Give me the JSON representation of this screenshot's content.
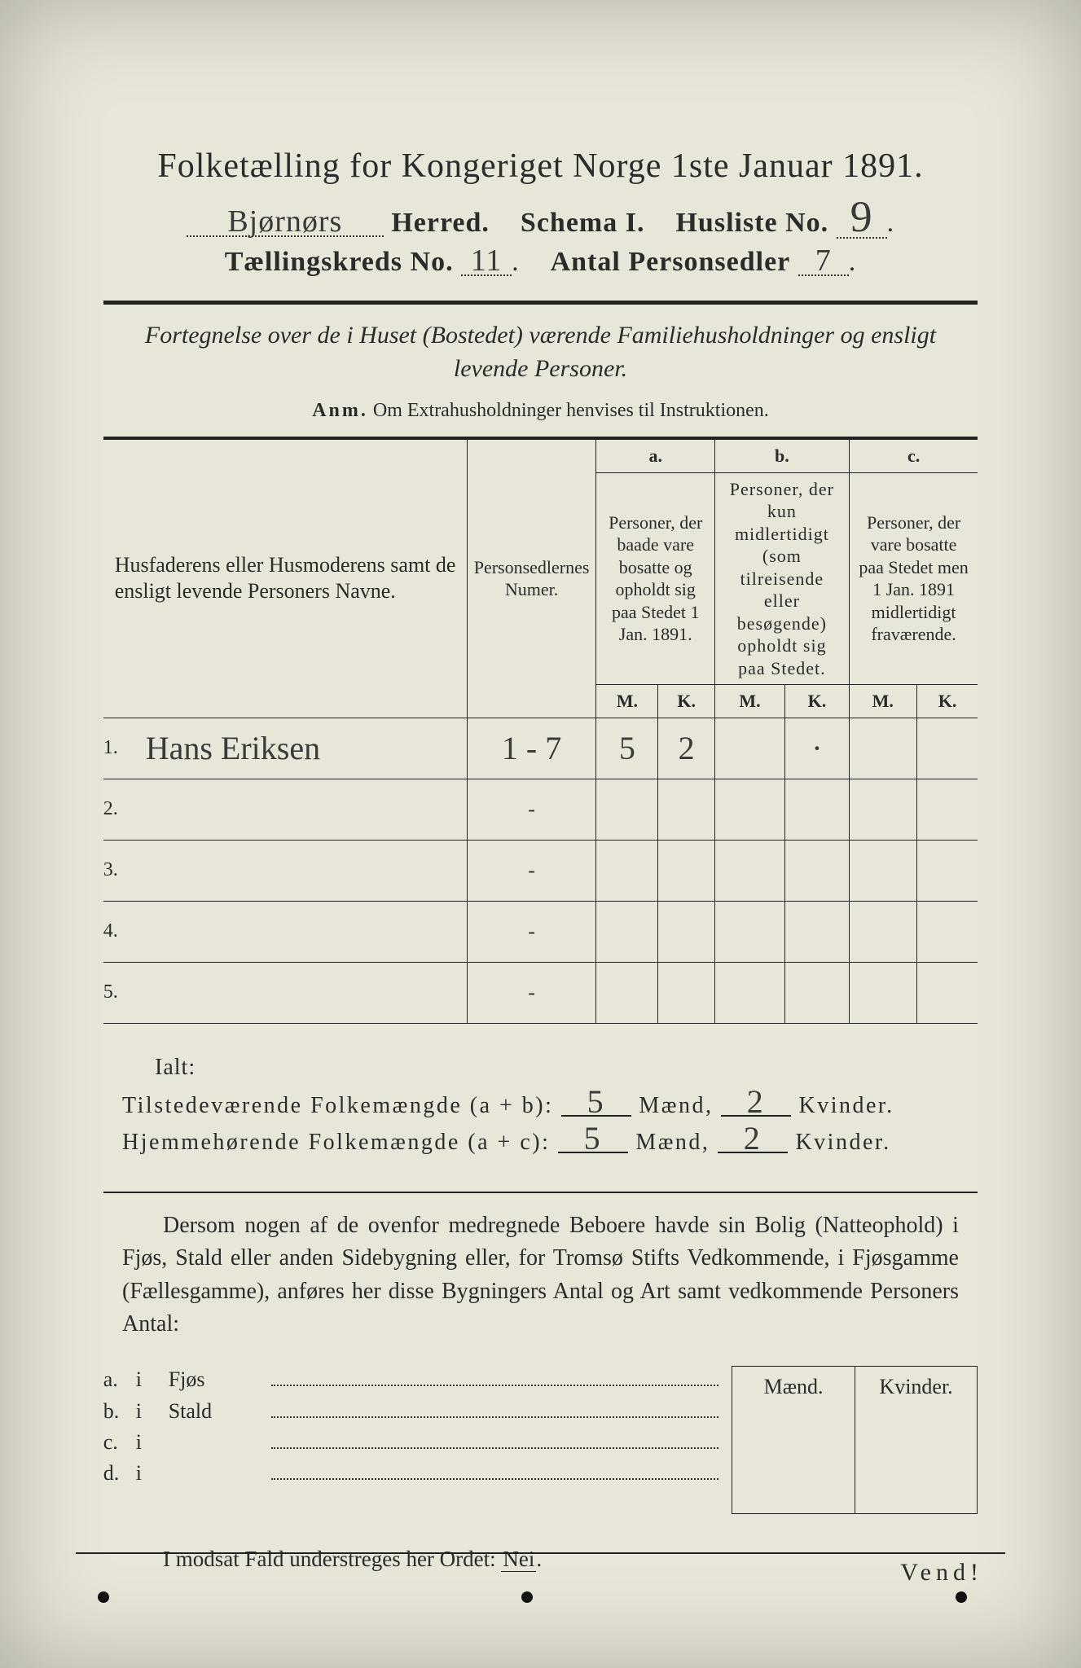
{
  "colors": {
    "paper_bg": "#e8e6d8",
    "ink": "#2b2b2b",
    "handwriting": "#3a3a3a",
    "rule": "#222222"
  },
  "typography": {
    "title_fontsize_pt": 32,
    "body_fontsize_pt": 21,
    "handwriting_font": "Brush Script MT"
  },
  "header": {
    "title": "Folketælling for Kongeriget Norge 1ste Januar 1891.",
    "herred_value": "Bjørnørs",
    "herred_label": "Herred.",
    "schema_label": "Schema I.",
    "husliste_label": "Husliste No.",
    "husliste_value": "9",
    "tkreds_label": "Tællingskreds No.",
    "tkreds_value": "11",
    "antal_label": "Antal Personsedler",
    "antal_value": "7"
  },
  "subtitle": {
    "italic": "Fortegnelse over de i Huset (Bostedet) værende Familiehusholdninger og ensligt levende Personer.",
    "anm_label": "Anm.",
    "anm_text": "Om Extrahusholdninger henvises til Instruktionen."
  },
  "table": {
    "col_name_head": "Husfaderens eller Husmoderens samt de ensligt levende Personers Navne.",
    "col_numer_head": "Personsedlernes Numer.",
    "col_a_label": "a.",
    "col_a_head": "Personer, der baade vare bosatte og opholdt sig paa Stedet 1 Jan. 1891.",
    "col_b_label": "b.",
    "col_b_head": "Personer, der kun midlertidigt (som tilreisende eller besøgende) opholdt sig paa Stedet.",
    "col_c_label": "c.",
    "col_c_head": "Personer, der vare bosatte paa Stedet men 1 Jan. 1891 midlertidigt fraværende.",
    "mk_m": "M.",
    "mk_k": "K.",
    "rows": [
      {
        "n": "1.",
        "name": "Hans Eriksen",
        "numer": "1 - 7",
        "a_m": "5",
        "a_k": "2",
        "b_m": "",
        "b_k": "·",
        "c_m": "",
        "c_k": ""
      },
      {
        "n": "2.",
        "name": "",
        "numer": "-",
        "a_m": "",
        "a_k": "",
        "b_m": "",
        "b_k": "",
        "c_m": "",
        "c_k": ""
      },
      {
        "n": "3.",
        "name": "",
        "numer": "-",
        "a_m": "",
        "a_k": "",
        "b_m": "",
        "b_k": "",
        "c_m": "",
        "c_k": ""
      },
      {
        "n": "4.",
        "name": "",
        "numer": "-",
        "a_m": "",
        "a_k": "",
        "b_m": "",
        "b_k": "",
        "c_m": "",
        "c_k": ""
      },
      {
        "n": "5.",
        "name": "",
        "numer": "-",
        "a_m": "",
        "a_k": "",
        "b_m": "",
        "b_k": "",
        "c_m": "",
        "c_k": ""
      }
    ]
  },
  "totals": {
    "ialt": "Ialt:",
    "line1_label": "Tilstedeværende Folkemængde (a + b):",
    "line2_label": "Hjemmehørende Folkemængde (a + c):",
    "maend": "Mænd,",
    "kvinder": "Kvinder.",
    "line1_m": "5",
    "line1_k": "2",
    "line2_m": "5",
    "line2_k": "2"
  },
  "paragraph": "Dersom nogen af de ovenfor medregnede Beboere havde sin Bolig (Natteophold) i Fjøs, Stald eller anden Sidebygning eller, for Tromsø Stifts Vedkommende, i Fjøsgamme (Fællesgamme), anføres her disse Bygningers Antal og Art samt vedkommende Personers Antal:",
  "abcd": {
    "maend": "Mænd.",
    "kvinder": "Kvinder.",
    "rows": [
      {
        "a": "a.",
        "i": "i",
        "label": "Fjøs"
      },
      {
        "a": "b.",
        "i": "i",
        "label": "Stald"
      },
      {
        "a": "c.",
        "i": "i",
        "label": ""
      },
      {
        "a": "d.",
        "i": "i",
        "label": ""
      }
    ]
  },
  "nei_sentence_prefix": "I modsat Fald understreges her Ordet: ",
  "nei_word": "Nei",
  "vend": "Vend!"
}
